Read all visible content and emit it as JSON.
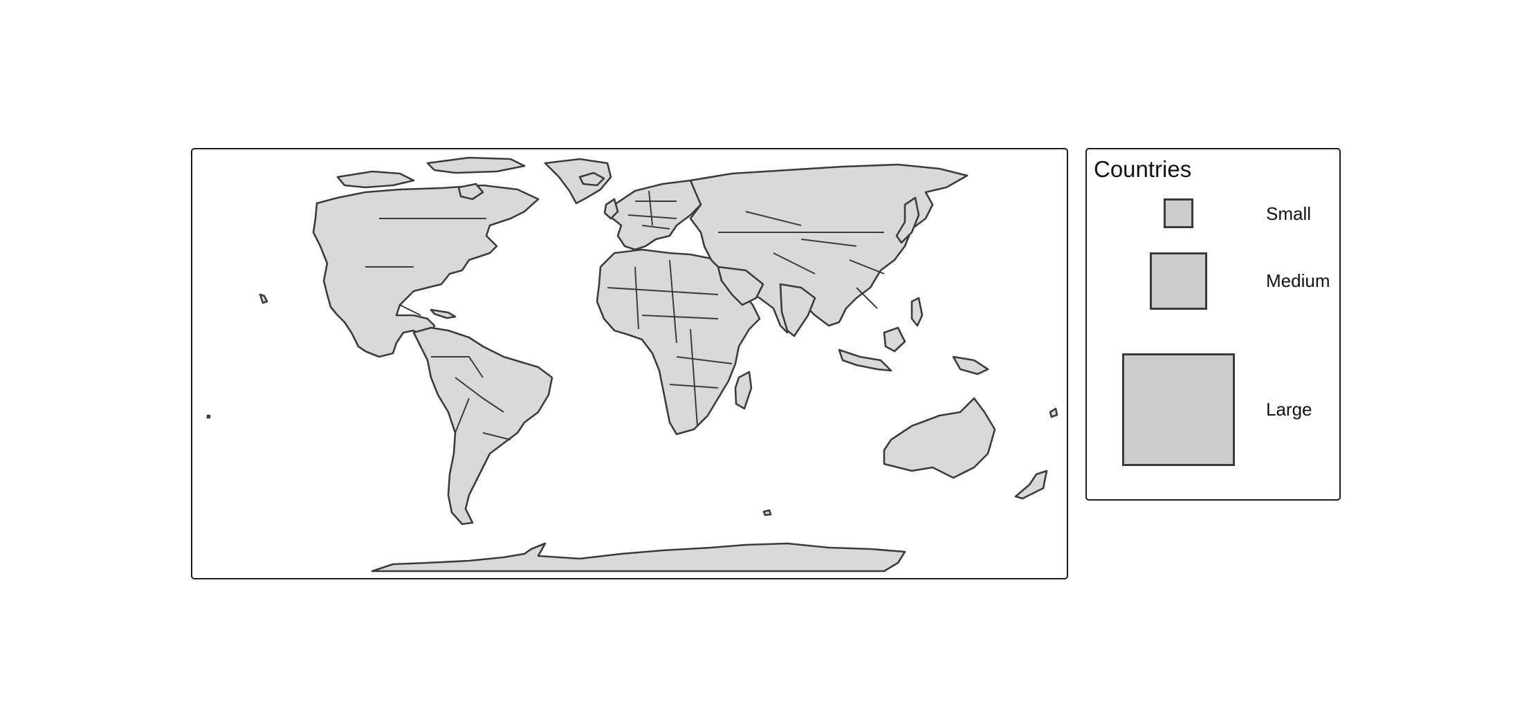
{
  "map": {
    "type": "choropleth-world-map",
    "projection": "Robinson-like",
    "fill_color": "#d9d9d9",
    "stroke_color": "#3b3b3b"
  },
  "legend": {
    "title": "Countries",
    "key_fill": "#cccccc",
    "items": [
      {
        "label": "Small"
      },
      {
        "label": "Medium"
      },
      {
        "label": "Large"
      }
    ]
  }
}
